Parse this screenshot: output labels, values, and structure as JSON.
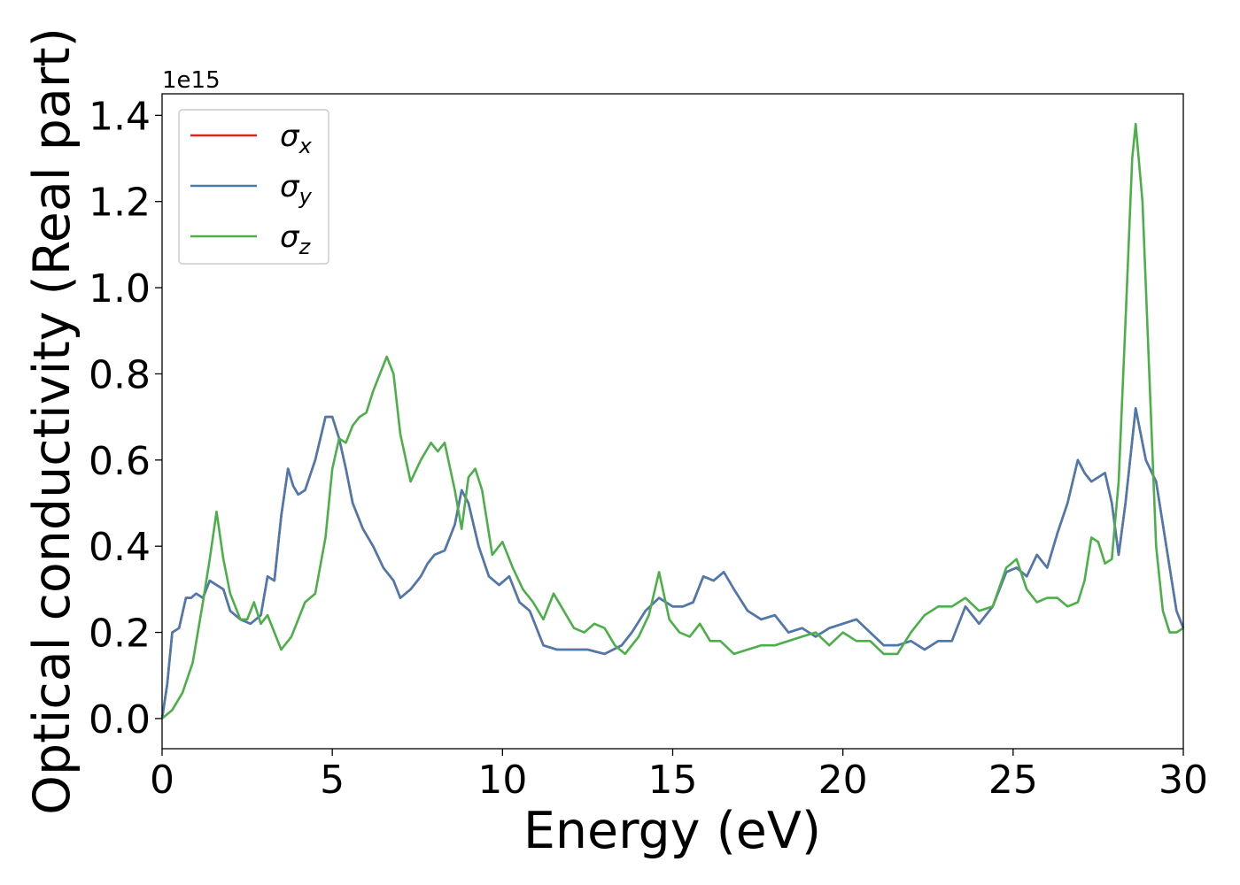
{
  "chart_data": {
    "type": "line",
    "xlabel": "Energy (eV)",
    "ylabel": "Optical conductivity (Real part)",
    "y_offset_label": "1e15",
    "xlim": [
      0,
      30
    ],
    "ylim": [
      -0.07,
      1.45
    ],
    "x_ticks": [
      0,
      5,
      10,
      15,
      20,
      25,
      30
    ],
    "x_tick_labels": [
      "0",
      "5",
      "10",
      "15",
      "20",
      "25",
      "30"
    ],
    "y_ticks": [
      0.0,
      0.2,
      0.4,
      0.6,
      0.8,
      1.0,
      1.2,
      1.4
    ],
    "y_tick_labels": [
      "0.0",
      "0.2",
      "0.4",
      "0.6",
      "0.8",
      "1.0",
      "1.2",
      "1.4"
    ],
    "grid": false,
    "legend_position": "top-left",
    "series": [
      {
        "name": "σx",
        "legend_symbol": "σ",
        "legend_sub": "x",
        "color": "#d62728",
        "x": [
          0,
          0.15,
          0.3,
          0.5,
          0.7,
          0.85,
          1.0,
          1.2,
          1.4,
          1.6,
          1.8,
          2.0,
          2.3,
          2.6,
          2.9,
          3.1,
          3.3,
          3.5,
          3.7,
          3.85,
          4.0,
          4.2,
          4.5,
          4.8,
          5.0,
          5.2,
          5.4,
          5.6,
          5.9,
          6.2,
          6.5,
          6.8,
          7.0,
          7.3,
          7.6,
          7.8,
          8.0,
          8.3,
          8.6,
          8.8,
          9.0,
          9.3,
          9.6,
          9.9,
          10.2,
          10.5,
          10.8,
          11.2,
          11.6,
          12.0,
          12.5,
          13.0,
          13.5,
          13.8,
          14.2,
          14.6,
          15.0,
          15.3,
          15.6,
          15.9,
          16.2,
          16.5,
          16.8,
          17.2,
          17.6,
          18.0,
          18.4,
          18.8,
          19.2,
          19.6,
          20.0,
          20.4,
          20.8,
          21.2,
          21.6,
          22.0,
          22.4,
          22.8,
          23.2,
          23.6,
          24.0,
          24.4,
          24.8,
          25.1,
          25.4,
          25.7,
          26.0,
          26.3,
          26.6,
          26.9,
          27.1,
          27.3,
          27.5,
          27.7,
          27.9,
          28.1,
          28.3,
          28.6,
          28.9,
          29.2,
          29.5,
          29.8,
          30.0
        ],
        "y": [
          0.0,
          0.08,
          0.2,
          0.21,
          0.28,
          0.28,
          0.29,
          0.28,
          0.32,
          0.31,
          0.3,
          0.25,
          0.23,
          0.22,
          0.24,
          0.33,
          0.32,
          0.47,
          0.58,
          0.54,
          0.52,
          0.53,
          0.6,
          0.7,
          0.7,
          0.65,
          0.58,
          0.5,
          0.44,
          0.4,
          0.35,
          0.32,
          0.28,
          0.3,
          0.33,
          0.36,
          0.38,
          0.39,
          0.45,
          0.53,
          0.5,
          0.4,
          0.33,
          0.31,
          0.33,
          0.27,
          0.25,
          0.17,
          0.16,
          0.16,
          0.16,
          0.15,
          0.17,
          0.2,
          0.25,
          0.28,
          0.26,
          0.26,
          0.27,
          0.33,
          0.32,
          0.34,
          0.3,
          0.25,
          0.23,
          0.24,
          0.2,
          0.21,
          0.19,
          0.21,
          0.22,
          0.23,
          0.2,
          0.17,
          0.17,
          0.18,
          0.16,
          0.18,
          0.18,
          0.26,
          0.22,
          0.26,
          0.34,
          0.35,
          0.33,
          0.38,
          0.35,
          0.43,
          0.5,
          0.6,
          0.57,
          0.55,
          0.56,
          0.57,
          0.5,
          0.38,
          0.5,
          0.72,
          0.6,
          0.55,
          0.4,
          0.25,
          0.21
        ]
      },
      {
        "name": "σy",
        "legend_symbol": "σ",
        "legend_sub": "y",
        "color": "#4a7ab0",
        "x": [
          0,
          0.15,
          0.3,
          0.5,
          0.7,
          0.85,
          1.0,
          1.2,
          1.4,
          1.6,
          1.8,
          2.0,
          2.3,
          2.6,
          2.9,
          3.1,
          3.3,
          3.5,
          3.7,
          3.85,
          4.0,
          4.2,
          4.5,
          4.8,
          5.0,
          5.2,
          5.4,
          5.6,
          5.9,
          6.2,
          6.5,
          6.8,
          7.0,
          7.3,
          7.6,
          7.8,
          8.0,
          8.3,
          8.6,
          8.8,
          9.0,
          9.3,
          9.6,
          9.9,
          10.2,
          10.5,
          10.8,
          11.2,
          11.6,
          12.0,
          12.5,
          13.0,
          13.5,
          13.8,
          14.2,
          14.6,
          15.0,
          15.3,
          15.6,
          15.9,
          16.2,
          16.5,
          16.8,
          17.2,
          17.6,
          18.0,
          18.4,
          18.8,
          19.2,
          19.6,
          20.0,
          20.4,
          20.8,
          21.2,
          21.6,
          22.0,
          22.4,
          22.8,
          23.2,
          23.6,
          24.0,
          24.4,
          24.8,
          25.1,
          25.4,
          25.7,
          26.0,
          26.3,
          26.6,
          26.9,
          27.1,
          27.3,
          27.5,
          27.7,
          27.9,
          28.1,
          28.3,
          28.6,
          28.9,
          29.2,
          29.5,
          29.8,
          30.0
        ],
        "y": [
          0.0,
          0.08,
          0.2,
          0.21,
          0.28,
          0.28,
          0.29,
          0.28,
          0.32,
          0.31,
          0.3,
          0.25,
          0.23,
          0.22,
          0.24,
          0.33,
          0.32,
          0.47,
          0.58,
          0.54,
          0.52,
          0.53,
          0.6,
          0.7,
          0.7,
          0.65,
          0.58,
          0.5,
          0.44,
          0.4,
          0.35,
          0.32,
          0.28,
          0.3,
          0.33,
          0.36,
          0.38,
          0.39,
          0.45,
          0.53,
          0.5,
          0.4,
          0.33,
          0.31,
          0.33,
          0.27,
          0.25,
          0.17,
          0.16,
          0.16,
          0.16,
          0.15,
          0.17,
          0.2,
          0.25,
          0.28,
          0.26,
          0.26,
          0.27,
          0.33,
          0.32,
          0.34,
          0.3,
          0.25,
          0.23,
          0.24,
          0.2,
          0.21,
          0.19,
          0.21,
          0.22,
          0.23,
          0.2,
          0.17,
          0.17,
          0.18,
          0.16,
          0.18,
          0.18,
          0.26,
          0.22,
          0.26,
          0.34,
          0.35,
          0.33,
          0.38,
          0.35,
          0.43,
          0.5,
          0.6,
          0.57,
          0.55,
          0.56,
          0.57,
          0.5,
          0.38,
          0.5,
          0.72,
          0.6,
          0.55,
          0.4,
          0.25,
          0.21
        ]
      },
      {
        "name": "σz",
        "legend_symbol": "σ",
        "legend_sub": "z",
        "color": "#4daf4a",
        "x": [
          0,
          0.3,
          0.6,
          0.9,
          1.2,
          1.4,
          1.6,
          1.8,
          2.0,
          2.3,
          2.5,
          2.7,
          2.9,
          3.1,
          3.3,
          3.5,
          3.8,
          4.2,
          4.5,
          4.8,
          5.0,
          5.2,
          5.4,
          5.6,
          5.8,
          6.0,
          6.2,
          6.4,
          6.6,
          6.8,
          7.0,
          7.3,
          7.6,
          7.9,
          8.1,
          8.3,
          8.6,
          8.8,
          9.0,
          9.2,
          9.4,
          9.7,
          10.0,
          10.3,
          10.6,
          10.9,
          11.2,
          11.5,
          11.8,
          12.1,
          12.4,
          12.7,
          13.0,
          13.3,
          13.6,
          14.0,
          14.3,
          14.6,
          14.9,
          15.2,
          15.5,
          15.8,
          16.1,
          16.4,
          16.8,
          17.2,
          17.6,
          18.0,
          18.4,
          18.8,
          19.2,
          19.6,
          20.0,
          20.4,
          20.8,
          21.2,
          21.6,
          22.0,
          22.4,
          22.8,
          23.2,
          23.6,
          24.0,
          24.4,
          24.8,
          25.1,
          25.4,
          25.7,
          26.0,
          26.3,
          26.6,
          26.9,
          27.1,
          27.3,
          27.5,
          27.7,
          27.9,
          28.1,
          28.3,
          28.5,
          28.6,
          28.8,
          29.0,
          29.2,
          29.4,
          29.6,
          29.8,
          30.0
        ],
        "y": [
          0.0,
          0.02,
          0.06,
          0.13,
          0.27,
          0.37,
          0.48,
          0.37,
          0.29,
          0.23,
          0.23,
          0.27,
          0.22,
          0.24,
          0.2,
          0.16,
          0.19,
          0.27,
          0.29,
          0.42,
          0.58,
          0.65,
          0.64,
          0.68,
          0.7,
          0.71,
          0.76,
          0.8,
          0.84,
          0.8,
          0.66,
          0.55,
          0.6,
          0.64,
          0.62,
          0.64,
          0.53,
          0.44,
          0.56,
          0.58,
          0.53,
          0.38,
          0.41,
          0.35,
          0.3,
          0.27,
          0.23,
          0.29,
          0.25,
          0.21,
          0.2,
          0.22,
          0.21,
          0.17,
          0.15,
          0.19,
          0.24,
          0.34,
          0.23,
          0.2,
          0.19,
          0.22,
          0.18,
          0.18,
          0.15,
          0.16,
          0.17,
          0.17,
          0.18,
          0.19,
          0.2,
          0.17,
          0.2,
          0.18,
          0.18,
          0.15,
          0.15,
          0.2,
          0.24,
          0.26,
          0.26,
          0.28,
          0.25,
          0.26,
          0.35,
          0.37,
          0.3,
          0.27,
          0.28,
          0.28,
          0.26,
          0.27,
          0.32,
          0.42,
          0.41,
          0.36,
          0.37,
          0.55,
          0.92,
          1.3,
          1.38,
          1.2,
          0.8,
          0.4,
          0.25,
          0.2,
          0.2,
          0.21
        ]
      }
    ]
  }
}
